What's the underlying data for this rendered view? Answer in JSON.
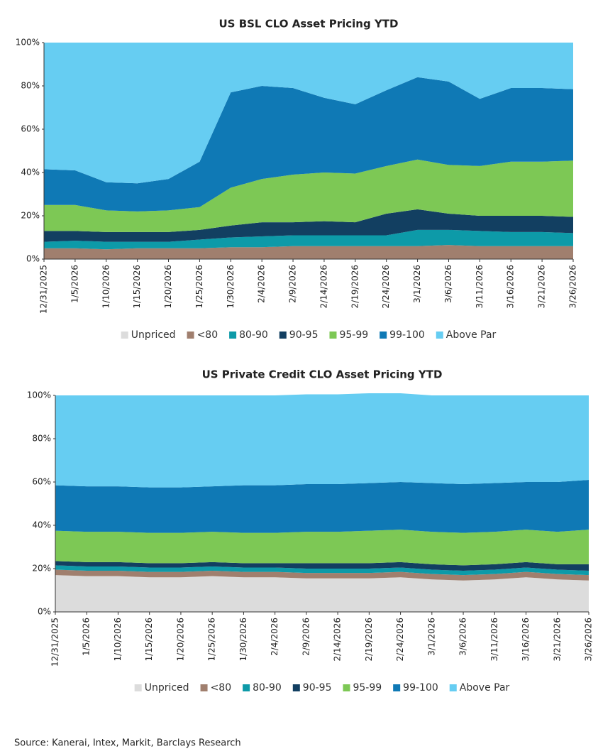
{
  "chart_data": [
    {
      "type": "area",
      "stacked": true,
      "title": "US BSL CLO Asset Pricing YTD",
      "categories": [
        "12/31/2025",
        "1/5/2026",
        "1/10/2026",
        "1/15/2026",
        "1/20/2026",
        "1/25/2026",
        "1/30/2026",
        "2/4/2026",
        "2/9/2026",
        "2/14/2026",
        "2/19/2026",
        "2/24/2026",
        "3/1/2026",
        "3/6/2026",
        "3/11/2026",
        "3/16/2026",
        "3/21/2026",
        "3/26/2026"
      ],
      "ylim": [
        0,
        100
      ],
      "yticks": [
        {
          "value": 0,
          "label": "0%"
        },
        {
          "value": 20,
          "label": "20%"
        },
        {
          "value": 40,
          "label": "40%"
        },
        {
          "value": 60,
          "label": "60%"
        },
        {
          "value": 80,
          "label": "80%"
        },
        {
          "value": 100,
          "label": "100%"
        }
      ],
      "legend": "bottom",
      "series": [
        {
          "name": "Unpriced",
          "color": "#dcdcdc",
          "values": [
            0,
            0,
            0,
            0,
            0,
            0,
            0,
            0,
            0,
            0,
            0,
            0,
            0,
            0,
            0,
            0,
            0,
            0
          ]
        },
        {
          "name": "<80",
          "color": "#a07f6e",
          "values": [
            5,
            5,
            4.5,
            5,
            5,
            5,
            5.5,
            5.5,
            6,
            6,
            6,
            6,
            6,
            6.5,
            6,
            6,
            6,
            6
          ]
        },
        {
          "name": "80-90",
          "color": "#0d9aa8",
          "values": [
            3,
            3.5,
            3.5,
            3,
            3,
            4,
            4.5,
            5,
            5,
            5,
            5,
            5,
            7.5,
            7,
            7,
            6.5,
            6.5,
            6
          ]
        },
        {
          "name": "90-95",
          "color": "#123f61",
          "values": [
            5,
            4.5,
            4.5,
            4.5,
            4.5,
            4.5,
            5.5,
            6.5,
            6,
            6.5,
            6,
            10,
            9.5,
            7.5,
            7,
            7.5,
            7.5,
            7.5
          ]
        },
        {
          "name": "95-99",
          "color": "#7dc855",
          "values": [
            12,
            12,
            10,
            9.5,
            10,
            10.5,
            17.5,
            20,
            22,
            22.5,
            22.5,
            22,
            23,
            22.5,
            23,
            25,
            25,
            26
          ]
        },
        {
          "name": "99-100",
          "color": "#0f79b5",
          "values": [
            16.5,
            16,
            13,
            13,
            14.5,
            21,
            44,
            43,
            40,
            34.5,
            32,
            35,
            38,
            38.5,
            31,
            34,
            34,
            33
          ]
        },
        {
          "name": "Above Par",
          "color": "#66cdf2",
          "values": [
            58.5,
            59,
            64.5,
            65,
            63,
            55,
            23,
            20,
            21,
            25.5,
            28.5,
            22,
            16,
            18,
            26,
            21,
            21,
            21.5
          ]
        }
      ]
    },
    {
      "type": "area",
      "stacked": true,
      "title": "US Private Credit CLO Asset Pricing YTD",
      "categories": [
        "12/31/2025",
        "1/5/2026",
        "1/10/2026",
        "1/15/2026",
        "1/20/2026",
        "1/25/2026",
        "1/30/2026",
        "2/4/2026",
        "2/9/2026",
        "2/14/2026",
        "2/19/2026",
        "2/24/2026",
        "3/1/2026",
        "3/6/2026",
        "3/11/2026",
        "3/16/2026",
        "3/21/2026",
        "3/26/2026"
      ],
      "ylim": [
        0,
        100
      ],
      "yticks": [
        {
          "value": 0,
          "label": "0%"
        },
        {
          "value": 20,
          "label": "20%"
        },
        {
          "value": 40,
          "label": "40%"
        },
        {
          "value": 60,
          "label": "60%"
        },
        {
          "value": 80,
          "label": "80%"
        },
        {
          "value": 100,
          "label": "100%"
        }
      ],
      "legend": "bottom",
      "series": [
        {
          "name": "Unpriced",
          "color": "#dcdcdc",
          "values": [
            17,
            16.5,
            16.5,
            16,
            16,
            16.5,
            16,
            16,
            15.5,
            15.5,
            15.5,
            16,
            15,
            14.5,
            15,
            16,
            15,
            14.5
          ]
        },
        {
          "name": "<80",
          "color": "#a07f6e",
          "values": [
            2.5,
            2.5,
            2.5,
            2.5,
            2.5,
            2.5,
            2.5,
            2.5,
            2.5,
            2.5,
            2.5,
            2.5,
            2.5,
            2.5,
            2.5,
            2.5,
            2.5,
            2.5
          ]
        },
        {
          "name": "80-90",
          "color": "#0d9aa8",
          "values": [
            2,
            2,
            2,
            2,
            2,
            2,
            2,
            2,
            2,
            2,
            2,
            2,
            2,
            2,
            2,
            2,
            2,
            2
          ]
        },
        {
          "name": "90-95",
          "color": "#123f61",
          "values": [
            2,
            2,
            2,
            2,
            2,
            2,
            2,
            2,
            2.5,
            2.5,
            2.5,
            2.5,
            2.5,
            2.5,
            2.5,
            2.5,
            2.5,
            3
          ]
        },
        {
          "name": "95-99",
          "color": "#7dc855",
          "values": [
            14,
            14,
            14,
            14,
            14,
            14,
            14,
            14,
            14.5,
            14.5,
            15,
            15,
            15,
            15,
            15,
            15,
            15,
            16
          ]
        },
        {
          "name": "99-100",
          "color": "#0f79b5",
          "values": [
            21,
            21,
            21,
            21,
            21,
            21,
            22,
            22,
            22,
            22,
            22,
            22,
            22.5,
            22.5,
            22.5,
            22,
            23,
            23
          ]
        },
        {
          "name": "Above Par",
          "color": "#66cdf2",
          "values": [
            41.5,
            42,
            42,
            42.5,
            42.5,
            42,
            41.5,
            41.5,
            41.5,
            41.5,
            41.5,
            41,
            40.5,
            41,
            40.5,
            40,
            40,
            39
          ]
        }
      ]
    }
  ],
  "source": "Source: Kanerai, Intex, Markit, Barclays Research"
}
